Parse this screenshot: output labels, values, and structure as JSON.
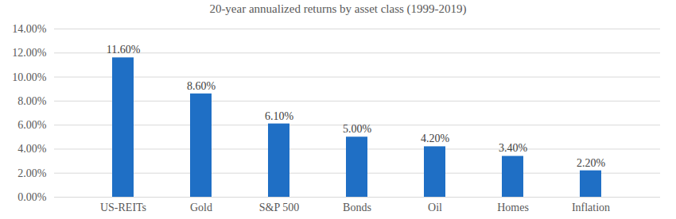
{
  "chart_data": {
    "type": "bar",
    "title": "20-year annualized returns by asset class (1999-2019)",
    "categories": [
      "US-REITs",
      "Gold",
      "S&P 500",
      "Bonds",
      "Oil",
      "Homes",
      "Inflation"
    ],
    "values": [
      11.6,
      8.6,
      6.1,
      5.0,
      4.2,
      3.4,
      2.2
    ],
    "value_labels": [
      "11.60%",
      "8.60%",
      "6.10%",
      "5.00%",
      "4.20%",
      "3.40%",
      "2.20%"
    ],
    "color": "#1f6fc5",
    "ylim": [
      0,
      14
    ],
    "yticks": [
      {
        "value": 0,
        "label": "0.00%"
      },
      {
        "value": 2,
        "label": "2.00%"
      },
      {
        "value": 4,
        "label": "4.00%"
      },
      {
        "value": 6,
        "label": "6.00%"
      },
      {
        "value": 8,
        "label": "8.00%"
      },
      {
        "value": 10,
        "label": "10.00%"
      },
      {
        "value": 12,
        "label": "12.00%"
      },
      {
        "value": 14,
        "label": "14.00%"
      }
    ],
    "grid": true,
    "data_labels": true
  }
}
